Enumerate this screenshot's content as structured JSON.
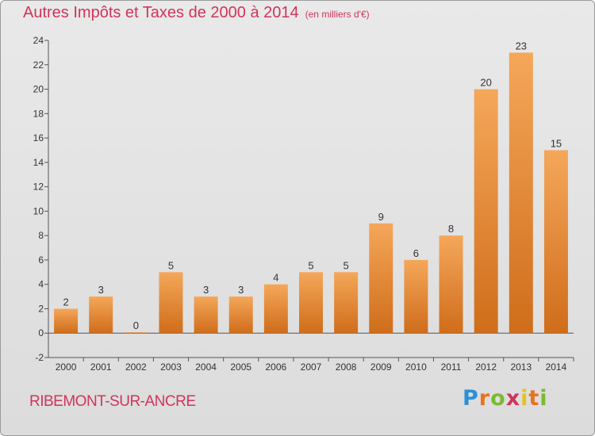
{
  "header": {
    "title": "Autres Impôts et Taxes de 2000 à 2014",
    "unit": "(en milliers d'€)"
  },
  "commune": "RIBEMONT-SUR-ANCRE",
  "logo": {
    "letters": [
      "P",
      "r",
      "o",
      "x",
      "i",
      "t",
      "i"
    ]
  },
  "colors": {
    "title": "#d1345b",
    "bar_light": "#f5a75a",
    "bar_dark": "#cf6d1a",
    "axis": "#555555"
  },
  "chart_data": {
    "type": "bar",
    "categories": [
      "2000",
      "2001",
      "2002",
      "2003",
      "2004",
      "2005",
      "2006",
      "2007",
      "2008",
      "2009",
      "2010",
      "2011",
      "2012",
      "2013",
      "2014"
    ],
    "values": [
      2,
      3,
      0,
      5,
      3,
      3,
      4,
      5,
      5,
      9,
      6,
      8,
      20,
      23,
      15
    ],
    "title": "Autres Impôts et Taxes de 2000 à 2014",
    "ylim": [
      -2,
      24
    ],
    "yticks": [
      -2,
      0,
      2,
      4,
      6,
      8,
      10,
      12,
      14,
      16,
      18,
      20,
      22,
      24
    ],
    "grid": false,
    "data_labels": true
  }
}
